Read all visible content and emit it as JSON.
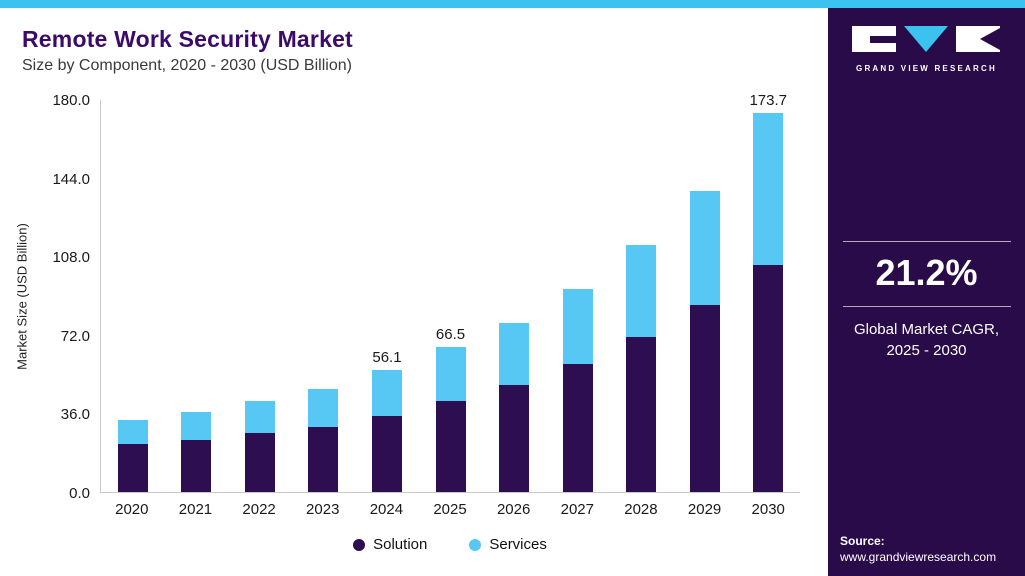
{
  "colors": {
    "cyan": "#3cc2ee",
    "purple_dark": "#2a0b49",
    "purple_title": "#3c0b67",
    "bar_solution": "#2d0e50",
    "bar_services": "#57c8f3",
    "axis_line": "#c9c9c9"
  },
  "header": {
    "title": "Remote Work Security Market",
    "subtitle": "Size by Component, 2020 - 2030 (USD Billion)"
  },
  "chart_data": {
    "type": "bar",
    "stacked": true,
    "title": "Remote Work Security Market",
    "subtitle": "Size by Component, 2020 - 2030 (USD Billion)",
    "xlabel": "",
    "ylabel": "Market Size (USD Billion)",
    "ylim": [
      0,
      180
    ],
    "yticks": [
      "0.0",
      "36.0",
      "72.0",
      "108.0",
      "144.0",
      "180.0"
    ],
    "grid": false,
    "legend_position": "bottom",
    "categories": [
      "2020",
      "2021",
      "2022",
      "2023",
      "2024",
      "2025",
      "2026",
      "2027",
      "2028",
      "2029",
      "2030"
    ],
    "series": [
      {
        "name": "Solution",
        "color": "#2d0e50",
        "values": [
          22,
          24,
          27,
          30,
          35,
          41.5,
          49,
          58.5,
          71,
          85.5,
          104
        ]
      },
      {
        "name": "Services",
        "color": "#57c8f3",
        "values": [
          11,
          12.5,
          14.5,
          17,
          21.1,
          25,
          28.5,
          34.5,
          42,
          52.5,
          69.7
        ]
      }
    ],
    "totals": [
      33,
      36.5,
      41.5,
      47,
      56.1,
      66.5,
      77.5,
      93,
      113,
      138,
      173.7
    ],
    "total_labels": [
      "",
      "",
      "",
      "",
      "56.1",
      "66.5",
      "",
      "",
      "",
      "",
      "173.7"
    ]
  },
  "sidebar": {
    "logo_text": "GRAND VIEW RESEARCH",
    "stat_value": "21.2%",
    "stat_label": "Global Market CAGR, 2025 - 2030",
    "source_label": "Source:",
    "source_url": "www.grandviewresearch.com"
  }
}
